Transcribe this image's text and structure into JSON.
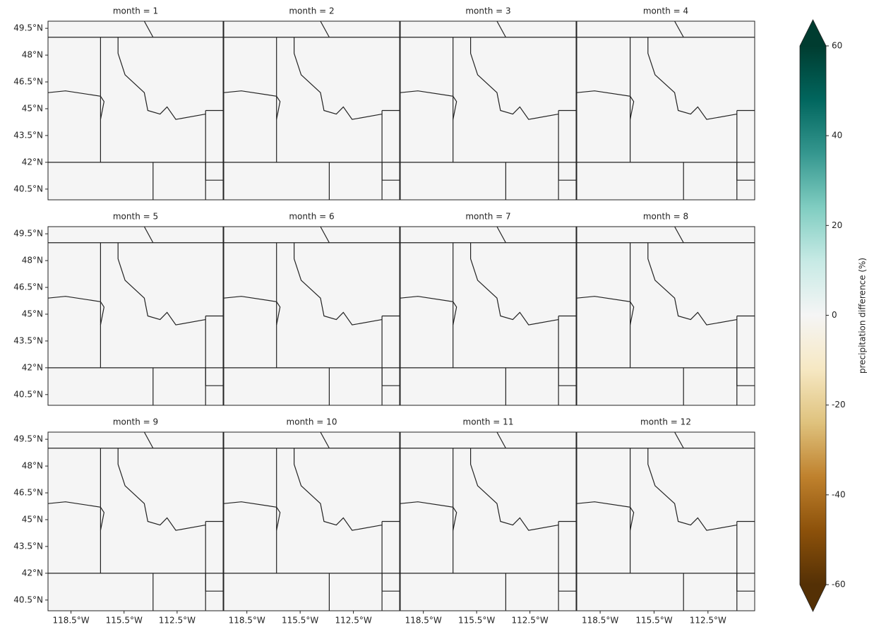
{
  "chart_data": {
    "type": "map-grid",
    "panels": [
      {
        "title": "month = 1"
      },
      {
        "title": "month = 2"
      },
      {
        "title": "month = 3"
      },
      {
        "title": "month = 4"
      },
      {
        "title": "month = 5"
      },
      {
        "title": "month = 6"
      },
      {
        "title": "month = 7"
      },
      {
        "title": "month = 8"
      },
      {
        "title": "month = 9"
      },
      {
        "title": "month = 10"
      },
      {
        "title": "month = 11"
      },
      {
        "title": "month = 12"
      }
    ],
    "columns": 4,
    "xlim": [
      -119.8,
      -109.9
    ],
    "xticks": [
      {
        "value": -118.5,
        "label": "118.5°W"
      },
      {
        "value": -115.5,
        "label": "115.5°W"
      },
      {
        "value": -112.5,
        "label": "112.5°W"
      }
    ],
    "ylim": [
      39.9,
      49.9
    ],
    "yticks": [
      {
        "value": 49.5,
        "label": "49.5°N"
      },
      {
        "value": 48,
        "label": "48°N"
      },
      {
        "value": 46.5,
        "label": "46.5°N"
      },
      {
        "value": 45,
        "label": "45°N"
      },
      {
        "value": 43.5,
        "label": "43.5°N"
      },
      {
        "value": 42,
        "label": "42°N"
      },
      {
        "value": 40.5,
        "label": "40.5°N"
      }
    ],
    "colorbar": {
      "label": "precipitation difference (%)",
      "lim": [
        -60,
        60
      ],
      "ticks": [
        -60,
        -40,
        -20,
        0,
        20,
        40,
        60
      ],
      "colors": [
        "#543005",
        "#8c510a",
        "#bf812d",
        "#dfc27d",
        "#f6e8c3",
        "#f5f5f5",
        "#c7eae5",
        "#80cdc1",
        "#35978f",
        "#01665e",
        "#003c30"
      ]
    }
  }
}
